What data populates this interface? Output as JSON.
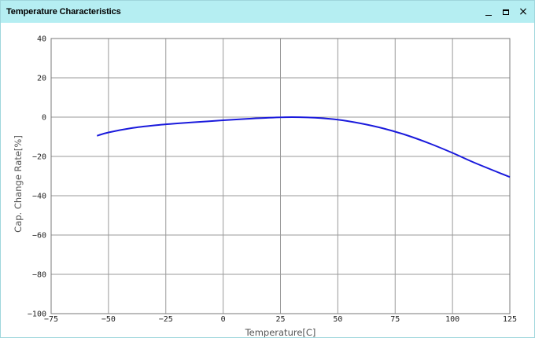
{
  "window": {
    "title": "Temperature Characteristics",
    "controls": {
      "minimize_icon": "minimize-icon",
      "maximize_icon": "maximize-icon",
      "close_icon": "close-icon",
      "close_glyph": "×"
    },
    "titlebar_color": "#b5eef2"
  },
  "chart_data": {
    "type": "line",
    "xlabel": "Temperature[C]",
    "ylabel": "Cap. Change Rate[%]",
    "xlim": [
      -75,
      125
    ],
    "ylim": [
      -100,
      40
    ],
    "xticks": [
      -75,
      -50,
      -25,
      0,
      25,
      50,
      75,
      100,
      125
    ],
    "yticks": [
      -100,
      -80,
      -60,
      -40,
      -20,
      0,
      20,
      40
    ],
    "grid": true,
    "legend": "none",
    "series": [
      {
        "color": "#1a1adc",
        "x": [
          -55,
          -50,
          -40,
          -30,
          -20,
          -10,
          0,
          10,
          20,
          30,
          40,
          50,
          60,
          70,
          80,
          90,
          100,
          110,
          125
        ],
        "y": [
          -9.5,
          -7.8,
          -5.6,
          -4.2,
          -3.2,
          -2.4,
          -1.6,
          -0.9,
          -0.3,
          0,
          -0.3,
          -1.3,
          -3.2,
          -5.8,
          -9.2,
          -13.4,
          -18.2,
          -23.4,
          -30.5
        ]
      }
    ]
  }
}
